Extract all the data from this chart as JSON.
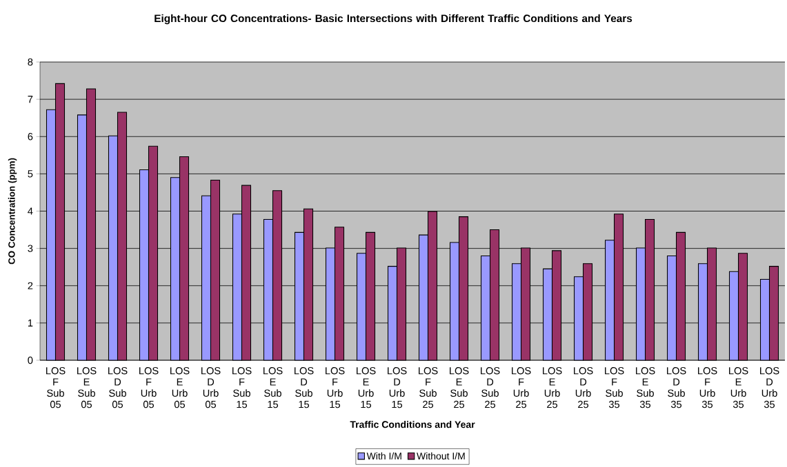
{
  "chart_data": {
    "type": "bar",
    "title": "Eight-hour CO Concentrations- Basic Intersections with Different Traffic Conditions and Years",
    "xlabel": "Traffic Conditions and Year",
    "ylabel": "CO Concentration (ppm)",
    "categories": [
      "LOS F Sub 05",
      "LOS E Sub 05",
      "LOS D Sub 05",
      "LOS F Urb 05",
      "LOS E Urb 05",
      "LOS D Urb 05",
      "LOS F Sub 15",
      "LOS E Sub 15",
      "LOS D Sub 15",
      "LOS F Urb 15",
      "LOS E Urb 15",
      "LOS D Urb 15",
      "LOS F Sub 25",
      "LOS E Sub 25",
      "LOS D Sub 25",
      "LOS F Urb 25",
      "LOS E Urb 25",
      "LOS D Urb 25",
      "LOS F Sub 35",
      "LOS E Sub 35",
      "LOS D Sub 35",
      "LOS F Urb 35",
      "LOS E Urb 35",
      "LOS D Urb 35"
    ],
    "series": [
      {
        "name": "With I/M",
        "color": "#9999ff",
        "values": [
          6.72,
          6.58,
          6.02,
          5.11,
          4.9,
          4.41,
          3.92,
          3.78,
          3.43,
          3.01,
          2.87,
          2.52,
          3.36,
          3.16,
          2.8,
          2.59,
          2.45,
          2.24,
          3.22,
          3.01,
          2.8,
          2.59,
          2.38,
          2.17
        ]
      },
      {
        "name": "Without I/M",
        "color": "#993366",
        "values": [
          7.42,
          7.28,
          6.65,
          5.74,
          5.46,
          4.83,
          4.69,
          4.55,
          4.06,
          3.57,
          3.43,
          3.01,
          3.99,
          3.85,
          3.5,
          3.01,
          2.94,
          2.59,
          3.92,
          3.78,
          3.43,
          3.01,
          2.87,
          2.52
        ]
      }
    ],
    "ylim": [
      0,
      8
    ],
    "yticks": [
      0,
      1,
      2,
      3,
      4,
      5,
      6,
      7,
      8
    ],
    "grid": "y",
    "legend": "bottom"
  }
}
